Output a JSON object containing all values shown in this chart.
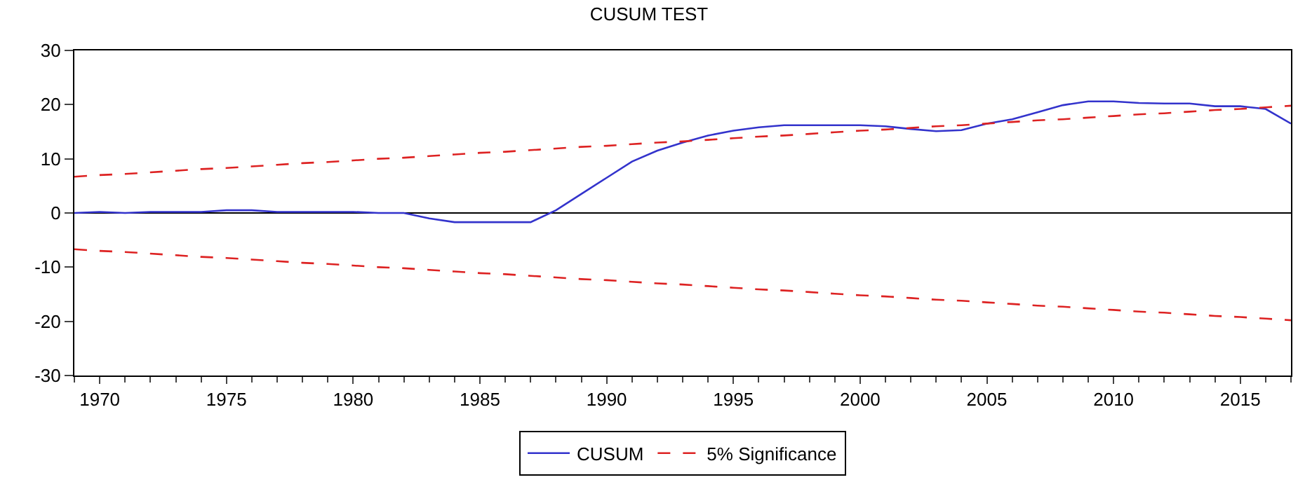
{
  "chart_data": {
    "type": "line",
    "title": "CUSUM TEST",
    "x": [
      1969,
      1970,
      1971,
      1972,
      1973,
      1974,
      1975,
      1976,
      1977,
      1978,
      1979,
      1980,
      1981,
      1982,
      1983,
      1984,
      1985,
      1986,
      1987,
      1988,
      1989,
      1990,
      1991,
      1992,
      1993,
      1994,
      1995,
      1996,
      1997,
      1998,
      1999,
      2000,
      2001,
      2002,
      2003,
      2004,
      2005,
      2006,
      2007,
      2008,
      2009,
      2010,
      2011,
      2012,
      2013,
      2014,
      2015,
      2016,
      2017
    ],
    "series": [
      {
        "name": "CUSUM",
        "color": "#3333cc",
        "line_style": "solid",
        "values": [
          0,
          0.2,
          0,
          0.2,
          0.2,
          0.2,
          0.5,
          0.5,
          0.2,
          0.2,
          0.2,
          0.2,
          0,
          0,
          -1,
          -1.7,
          -1.7,
          -1.7,
          -1.7,
          0.5,
          3.5,
          6.5,
          9.5,
          11.5,
          13,
          14.3,
          15.2,
          15.8,
          16.2,
          16.2,
          16.2,
          16.2,
          16,
          15.5,
          15.1,
          15.3,
          16.5,
          17.3,
          18.6,
          19.9,
          20.6,
          20.6,
          20.3,
          20.2,
          20.2,
          19.7,
          19.7,
          19.2,
          16.5
        ]
      },
      {
        "name": "5% Significance",
        "color": "#dd2222",
        "line_style": "dashed",
        "values": [
          6.7,
          7.0,
          7.2,
          7.5,
          7.8,
          8.1,
          8.3,
          8.6,
          8.9,
          9.2,
          9.4,
          9.7,
          10.0,
          10.2,
          10.5,
          10.8,
          11.1,
          11.3,
          11.6,
          11.9,
          12.2,
          12.4,
          12.7,
          13.0,
          13.2,
          13.5,
          13.8,
          14.1,
          14.3,
          14.6,
          14.9,
          15.2,
          15.4,
          15.7,
          16.0,
          16.2,
          16.5,
          16.8,
          17.1,
          17.3,
          17.6,
          17.9,
          18.2,
          18.4,
          18.7,
          19.0,
          19.2,
          19.5,
          19.8
        ]
      },
      {
        "color": "#dd2222",
        "line_style": "dashed",
        "values": [
          -6.7,
          -7.0,
          -7.2,
          -7.5,
          -7.8,
          -8.1,
          -8.3,
          -8.6,
          -8.9,
          -9.2,
          -9.4,
          -9.7,
          -10.0,
          -10.2,
          -10.5,
          -10.8,
          -11.1,
          -11.3,
          -11.6,
          -11.9,
          -12.2,
          -12.4,
          -12.7,
          -13.0,
          -13.2,
          -13.5,
          -13.8,
          -14.1,
          -14.3,
          -14.6,
          -14.9,
          -15.2,
          -15.4,
          -15.7,
          -16.0,
          -16.2,
          -16.5,
          -16.8,
          -17.1,
          -17.3,
          -17.6,
          -17.9,
          -18.2,
          -18.4,
          -18.7,
          -19.0,
          -19.2,
          -19.5,
          -19.8
        ]
      }
    ],
    "xlim": [
      1969,
      2017
    ],
    "xticks": [
      1970,
      1975,
      1980,
      1985,
      1990,
      1995,
      2000,
      2005,
      2010,
      2015
    ],
    "ylim": [
      -30,
      30
    ],
    "yticks": [
      -30,
      -20,
      -10,
      0,
      10,
      20,
      30
    ],
    "ref_lines": [
      {
        "axis": "y",
        "value": 0,
        "color": "#000000"
      }
    ],
    "legend": "bottom",
    "grid": false
  }
}
